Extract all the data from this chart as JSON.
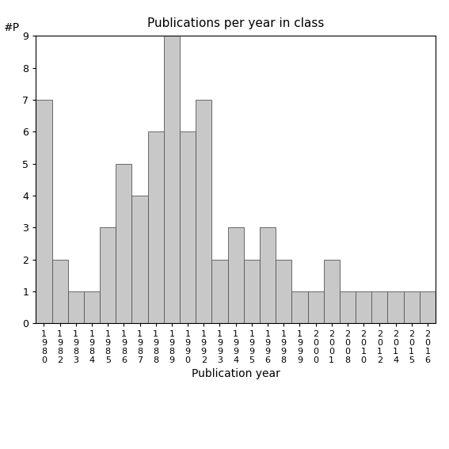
{
  "title": "Publications per year in class",
  "xlabel": "Publication year",
  "ylabel": "#P",
  "bar_color": "#c8c8c8",
  "bar_edgecolor": "#555555",
  "background_color": "#ffffff",
  "ylim": [
    0,
    9
  ],
  "yticks": [
    0,
    1,
    2,
    3,
    4,
    5,
    6,
    7,
    8,
    9
  ],
  "categories": [
    "1980",
    "1982",
    "1983",
    "1984",
    "1985",
    "1986",
    "1987",
    "1988",
    "1989",
    "1990",
    "1992",
    "1993",
    "1994",
    "1995",
    "1996",
    "1998",
    "1999",
    "2000",
    "2001",
    "2008",
    "2010",
    "2012",
    "2014",
    "2015",
    "2016"
  ],
  "values": [
    7,
    2,
    1,
    1,
    3,
    5,
    4,
    6,
    9,
    6,
    7,
    2,
    3,
    2,
    3,
    2,
    1,
    1,
    2,
    1,
    1,
    1,
    1,
    1,
    1
  ]
}
